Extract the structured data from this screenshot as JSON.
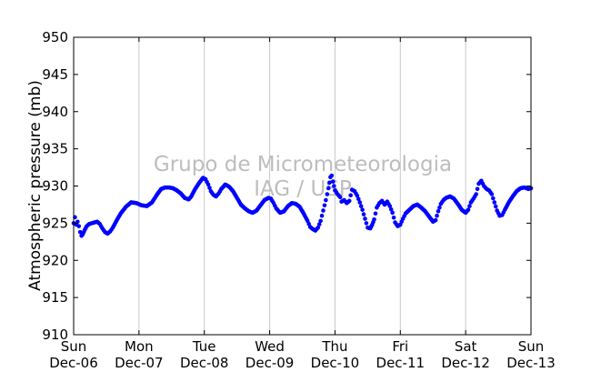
{
  "chart_data": {
    "type": "scatter",
    "ylabel": "Atmospheric pressure (mb)",
    "xlabel": "",
    "ylim": [
      910,
      950
    ],
    "yticks": [
      910,
      915,
      920,
      925,
      930,
      935,
      940,
      945,
      950
    ],
    "xlim": [
      0,
      7
    ],
    "xticks": [
      {
        "x": 0,
        "day": "Sun",
        "date": "Dec-06"
      },
      {
        "x": 1,
        "day": "Mon",
        "date": "Dec-07"
      },
      {
        "x": 2,
        "day": "Tue",
        "date": "Dec-08"
      },
      {
        "x": 3,
        "day": "Wed",
        "date": "Dec-09"
      },
      {
        "x": 4,
        "day": "Thu",
        "date": "Dec-10"
      },
      {
        "x": 5,
        "day": "Fri",
        "date": "Dec-11"
      },
      {
        "x": 6,
        "day": "Sat",
        "date": "Dec-12"
      },
      {
        "x": 7,
        "day": "Sun",
        "date": "Dec-13"
      }
    ],
    "grid": "vertical",
    "marker_color": "#0000ff",
    "watermark": [
      "Grupo de Micrometeorologia",
      "IAG / USP"
    ],
    "series": [
      {
        "name": "",
        "points": [
          [
            0.0,
            925.0
          ],
          [
            0.02,
            925.8
          ],
          [
            0.04,
            924.8
          ],
          [
            0.06,
            925.2
          ],
          [
            0.08,
            924.6
          ],
          [
            0.1,
            923.8
          ],
          [
            0.12,
            923.3
          ],
          [
            0.14,
            923.5
          ],
          [
            0.17,
            924.1
          ],
          [
            0.2,
            924.6
          ],
          [
            0.24,
            924.9
          ],
          [
            0.28,
            925.0
          ],
          [
            0.32,
            925.1
          ],
          [
            0.36,
            925.2
          ],
          [
            0.4,
            924.9
          ],
          [
            0.44,
            924.3
          ],
          [
            0.48,
            923.8
          ],
          [
            0.52,
            923.6
          ],
          [
            0.56,
            923.9
          ],
          [
            0.6,
            924.4
          ],
          [
            0.66,
            925.4
          ],
          [
            0.72,
            926.3
          ],
          [
            0.8,
            927.2
          ],
          [
            0.88,
            927.8
          ],
          [
            0.96,
            927.7
          ],
          [
            1.04,
            927.4
          ],
          [
            1.12,
            927.3
          ],
          [
            1.2,
            927.8
          ],
          [
            1.28,
            928.9
          ],
          [
            1.34,
            929.6
          ],
          [
            1.4,
            929.8
          ],
          [
            1.46,
            929.8
          ],
          [
            1.52,
            929.7
          ],
          [
            1.58,
            929.4
          ],
          [
            1.64,
            929.0
          ],
          [
            1.7,
            928.4
          ],
          [
            1.76,
            928.2
          ],
          [
            1.8,
            928.6
          ],
          [
            1.86,
            929.6
          ],
          [
            1.92,
            930.4
          ],
          [
            1.98,
            931.1
          ],
          [
            2.02,
            930.9
          ],
          [
            2.06,
            930.2
          ],
          [
            2.1,
            929.3
          ],
          [
            2.14,
            928.8
          ],
          [
            2.18,
            928.6
          ],
          [
            2.22,
            929.0
          ],
          [
            2.26,
            929.6
          ],
          [
            2.32,
            930.2
          ],
          [
            2.38,
            929.9
          ],
          [
            2.44,
            929.3
          ],
          [
            2.5,
            928.4
          ],
          [
            2.56,
            927.5
          ],
          [
            2.62,
            927.0
          ],
          [
            2.68,
            926.6
          ],
          [
            2.74,
            926.4
          ],
          [
            2.8,
            926.7
          ],
          [
            2.86,
            927.4
          ],
          [
            2.92,
            928.1
          ],
          [
            2.98,
            928.4
          ],
          [
            3.02,
            928.3
          ],
          [
            3.06,
            927.7
          ],
          [
            3.1,
            927.0
          ],
          [
            3.16,
            926.4
          ],
          [
            3.22,
            926.6
          ],
          [
            3.28,
            927.3
          ],
          [
            3.34,
            927.7
          ],
          [
            3.4,
            927.6
          ],
          [
            3.46,
            927.2
          ],
          [
            3.52,
            926.3
          ],
          [
            3.58,
            925.3
          ],
          [
            3.62,
            924.5
          ],
          [
            3.66,
            924.2
          ],
          [
            3.7,
            924.0
          ],
          [
            3.74,
            924.4
          ],
          [
            3.78,
            925.3
          ],
          [
            3.82,
            926.7
          ],
          [
            3.86,
            928.1
          ],
          [
            3.9,
            929.7
          ],
          [
            3.93,
            931.2
          ],
          [
            3.95,
            931.4
          ],
          [
            3.97,
            930.6
          ],
          [
            4.0,
            929.4
          ],
          [
            4.04,
            928.9
          ],
          [
            4.08,
            928.5
          ],
          [
            4.1,
            927.9
          ],
          [
            4.14,
            928.1
          ],
          [
            4.18,
            927.7
          ],
          [
            4.22,
            928.0
          ],
          [
            4.26,
            929.5
          ],
          [
            4.3,
            929.3
          ],
          [
            4.34,
            928.7
          ],
          [
            4.38,
            927.8
          ],
          [
            4.42,
            926.8
          ],
          [
            4.46,
            925.6
          ],
          [
            4.5,
            924.4
          ],
          [
            4.54,
            924.3
          ],
          [
            4.57,
            924.8
          ],
          [
            4.6,
            925.5
          ],
          [
            4.64,
            927.1
          ],
          [
            4.68,
            927.7
          ],
          [
            4.72,
            928.0
          ],
          [
            4.76,
            927.5
          ],
          [
            4.8,
            927.9
          ],
          [
            4.84,
            927.3
          ],
          [
            4.88,
            926.4
          ],
          [
            4.92,
            925.1
          ],
          [
            4.96,
            924.6
          ],
          [
            5.0,
            924.8
          ],
          [
            5.04,
            925.6
          ],
          [
            5.08,
            926.3
          ],
          [
            5.14,
            926.8
          ],
          [
            5.2,
            927.3
          ],
          [
            5.26,
            927.5
          ],
          [
            5.32,
            927.1
          ],
          [
            5.38,
            926.6
          ],
          [
            5.44,
            925.9
          ],
          [
            5.5,
            925.2
          ],
          [
            5.54,
            925.4
          ],
          [
            5.58,
            926.6
          ],
          [
            5.62,
            927.6
          ],
          [
            5.66,
            928.1
          ],
          [
            5.7,
            928.4
          ],
          [
            5.76,
            928.6
          ],
          [
            5.82,
            928.3
          ],
          [
            5.88,
            927.6
          ],
          [
            5.94,
            926.8
          ],
          [
            6.0,
            926.4
          ],
          [
            6.04,
            926.8
          ],
          [
            6.08,
            927.8
          ],
          [
            6.12,
            928.3
          ],
          [
            6.16,
            928.9
          ],
          [
            6.2,
            930.3
          ],
          [
            6.24,
            930.7
          ],
          [
            6.28,
            930.0
          ],
          [
            6.32,
            929.6
          ],
          [
            6.36,
            929.4
          ],
          [
            6.4,
            928.9
          ],
          [
            6.44,
            927.8
          ],
          [
            6.48,
            926.7
          ],
          [
            6.52,
            926.0
          ],
          [
            6.56,
            926.1
          ],
          [
            6.6,
            926.8
          ],
          [
            6.66,
            927.8
          ],
          [
            6.72,
            928.6
          ],
          [
            6.78,
            929.3
          ],
          [
            6.84,
            929.7
          ],
          [
            6.9,
            929.8
          ],
          [
            6.96,
            929.6
          ],
          [
            7.0,
            929.7
          ]
        ]
      }
    ]
  }
}
